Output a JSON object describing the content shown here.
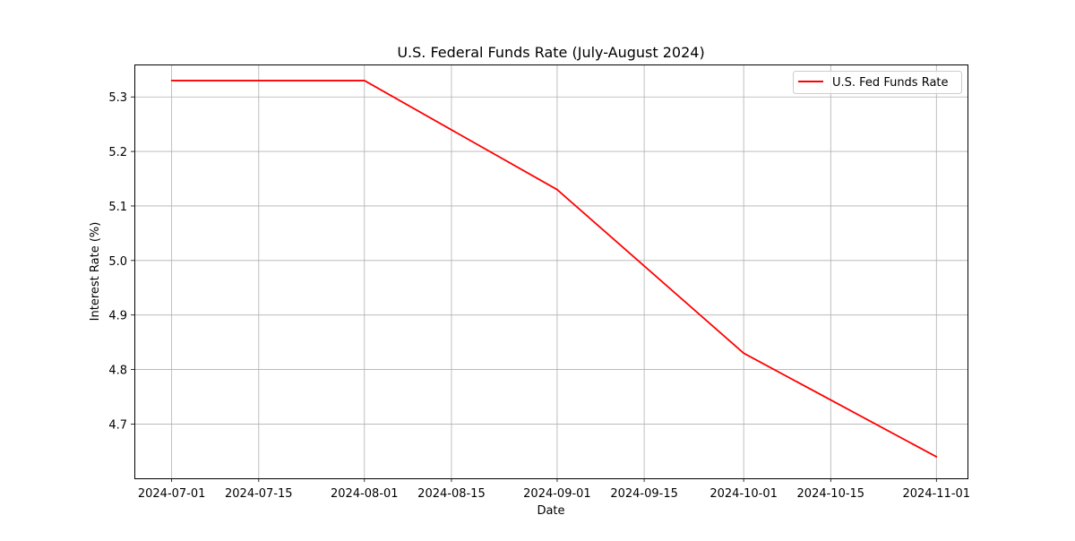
{
  "chart_data": {
    "type": "line",
    "title": "U.S. Federal Funds Rate (July-August 2024)",
    "xlabel": "Date",
    "ylabel": "Interest Rate (%)",
    "x": [
      "2024-07-01",
      "2024-08-01",
      "2024-09-01",
      "2024-10-01",
      "2024-11-01"
    ],
    "series": [
      {
        "name": "U.S. Fed Funds Rate",
        "values": [
          5.33,
          5.33,
          5.13,
          4.83,
          4.64
        ],
        "color": "#ff0000"
      }
    ],
    "xlim": [
      "2024-06-25",
      "2024-11-06"
    ],
    "ylim": [
      4.6005,
      5.3595
    ],
    "x_ticks": [
      "2024-07-01",
      "2024-07-15",
      "2024-08-01",
      "2024-08-15",
      "2024-09-01",
      "2024-09-15",
      "2024-10-01",
      "2024-10-15",
      "2024-11-01"
    ],
    "y_ticks": [
      4.7,
      4.8,
      4.9,
      5.0,
      5.1,
      5.2,
      5.3
    ],
    "y_tick_labels": [
      "4.7",
      "4.8",
      "4.9",
      "5.0",
      "5.1",
      "5.2",
      "5.3"
    ],
    "grid": true,
    "legend_position": "upper right"
  }
}
